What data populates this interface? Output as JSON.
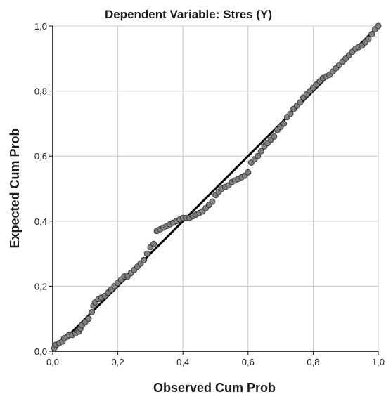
{
  "chart_data": {
    "type": "scatter",
    "title": "Dependent Variable: Stres (Y)",
    "xlabel": "Observed Cum Prob",
    "ylabel": "Expected Cum Prob",
    "xlim": [
      0,
      1
    ],
    "ylim": [
      0,
      1
    ],
    "x_ticks": [
      "0,0",
      "0,2",
      "0,4",
      "0,6",
      "0,8",
      "1,0"
    ],
    "y_ticks": [
      "0,0",
      "0,2",
      "0,4",
      "0,6",
      "0,8",
      "1,0"
    ],
    "x_tick_values": [
      0,
      0.2,
      0.4,
      0.6,
      0.8,
      1.0
    ],
    "y_tick_values": [
      0,
      0.2,
      0.4,
      0.6,
      0.8,
      1.0
    ],
    "grid": true,
    "reference_line": {
      "from": [
        0,
        0
      ],
      "to": [
        1,
        1
      ]
    },
    "colors": {
      "point_fill": "#808080",
      "point_stroke": "#3a3a3a",
      "line": "#000000",
      "grid": "#c8c8c8",
      "axis": "#000000"
    },
    "points": [
      [
        0.005,
        0.01
      ],
      [
        0.01,
        0.02
      ],
      [
        0.02,
        0.025
      ],
      [
        0.03,
        0.03
      ],
      [
        0.035,
        0.04
      ],
      [
        0.045,
        0.045
      ],
      [
        0.05,
        0.05
      ],
      [
        0.06,
        0.05
      ],
      [
        0.07,
        0.055
      ],
      [
        0.08,
        0.06
      ],
      [
        0.085,
        0.07
      ],
      [
        0.09,
        0.08
      ],
      [
        0.1,
        0.09
      ],
      [
        0.11,
        0.1
      ],
      [
        0.12,
        0.12
      ],
      [
        0.125,
        0.14
      ],
      [
        0.13,
        0.15
      ],
      [
        0.14,
        0.16
      ],
      [
        0.15,
        0.165
      ],
      [
        0.16,
        0.17
      ],
      [
        0.17,
        0.18
      ],
      [
        0.18,
        0.19
      ],
      [
        0.19,
        0.2
      ],
      [
        0.2,
        0.21
      ],
      [
        0.21,
        0.22
      ],
      [
        0.22,
        0.23
      ],
      [
        0.23,
        0.23
      ],
      [
        0.24,
        0.24
      ],
      [
        0.25,
        0.25
      ],
      [
        0.26,
        0.26
      ],
      [
        0.27,
        0.27
      ],
      [
        0.28,
        0.28
      ],
      [
        0.29,
        0.3
      ],
      [
        0.3,
        0.32
      ],
      [
        0.31,
        0.33
      ],
      [
        0.32,
        0.37
      ],
      [
        0.33,
        0.375
      ],
      [
        0.34,
        0.38
      ],
      [
        0.35,
        0.385
      ],
      [
        0.36,
        0.39
      ],
      [
        0.37,
        0.395
      ],
      [
        0.38,
        0.4
      ],
      [
        0.39,
        0.405
      ],
      [
        0.4,
        0.41
      ],
      [
        0.41,
        0.41
      ],
      [
        0.42,
        0.41
      ],
      [
        0.43,
        0.415
      ],
      [
        0.44,
        0.42
      ],
      [
        0.45,
        0.425
      ],
      [
        0.46,
        0.43
      ],
      [
        0.47,
        0.44
      ],
      [
        0.48,
        0.45
      ],
      [
        0.49,
        0.46
      ],
      [
        0.5,
        0.48
      ],
      [
        0.51,
        0.49
      ],
      [
        0.52,
        0.5
      ],
      [
        0.53,
        0.505
      ],
      [
        0.54,
        0.51
      ],
      [
        0.55,
        0.52
      ],
      [
        0.56,
        0.525
      ],
      [
        0.57,
        0.53
      ],
      [
        0.58,
        0.535
      ],
      [
        0.59,
        0.54
      ],
      [
        0.6,
        0.55
      ],
      [
        0.61,
        0.58
      ],
      [
        0.62,
        0.59
      ],
      [
        0.63,
        0.6
      ],
      [
        0.64,
        0.615
      ],
      [
        0.65,
        0.63
      ],
      [
        0.66,
        0.64
      ],
      [
        0.67,
        0.65
      ],
      [
        0.68,
        0.66
      ],
      [
        0.69,
        0.68
      ],
      [
        0.7,
        0.69
      ],
      [
        0.71,
        0.7
      ],
      [
        0.72,
        0.72
      ],
      [
        0.73,
        0.73
      ],
      [
        0.74,
        0.745
      ],
      [
        0.75,
        0.755
      ],
      [
        0.76,
        0.765
      ],
      [
        0.77,
        0.78
      ],
      [
        0.78,
        0.79
      ],
      [
        0.79,
        0.8
      ],
      [
        0.8,
        0.81
      ],
      [
        0.81,
        0.82
      ],
      [
        0.82,
        0.83
      ],
      [
        0.83,
        0.84
      ],
      [
        0.84,
        0.845
      ],
      [
        0.85,
        0.85
      ],
      [
        0.86,
        0.86
      ],
      [
        0.87,
        0.87
      ],
      [
        0.88,
        0.88
      ],
      [
        0.89,
        0.89
      ],
      [
        0.9,
        0.9
      ],
      [
        0.91,
        0.91
      ],
      [
        0.92,
        0.92
      ],
      [
        0.93,
        0.93
      ],
      [
        0.94,
        0.935
      ],
      [
        0.95,
        0.94
      ],
      [
        0.96,
        0.95
      ],
      [
        0.97,
        0.96
      ],
      [
        0.98,
        0.975
      ],
      [
        0.99,
        0.99
      ],
      [
        1.0,
        1.0
      ]
    ]
  }
}
